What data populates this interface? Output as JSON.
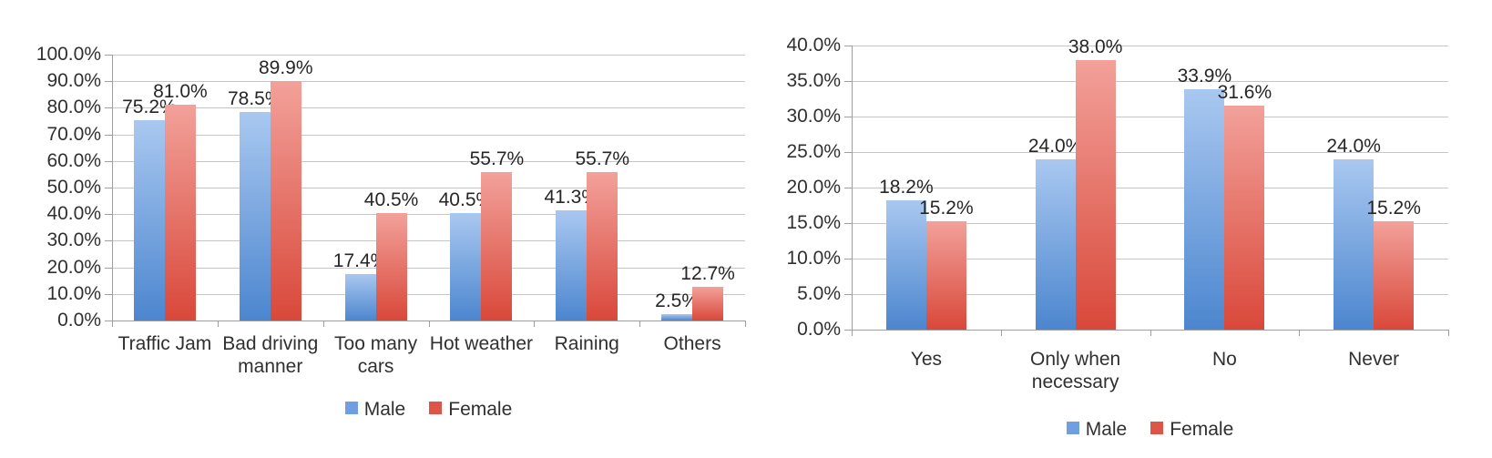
{
  "page": {
    "background": "#ffffff"
  },
  "colors": {
    "bar_male_top": "#a9c8f0",
    "bar_male_bottom": "#4c86cf",
    "bar_female_top": "#f2a19a",
    "bar_female_bottom": "#d9483a",
    "legend_male": "#6f9fe0",
    "legend_female": "#dd5448",
    "gridline": "#c6c6c6",
    "axis_line": "#9e9e9e",
    "text": "#303030"
  },
  "chart_data": [
    {
      "type": "bar",
      "title": "",
      "categories": [
        "Traffic Jam",
        "Bad driving manner",
        "Too many cars",
        "Hot weather",
        "Raining",
        "Others"
      ],
      "series": [
        {
          "name": "Male",
          "values": [
            75.2,
            78.5,
            17.4,
            40.5,
            41.3,
            2.5
          ]
        },
        {
          "name": "Female",
          "values": [
            81.0,
            89.9,
            40.5,
            55.7,
            55.7,
            12.7
          ]
        }
      ],
      "xlabel": "",
      "ylabel": "",
      "ylim": [
        0,
        100
      ],
      "ytick_step": 10,
      "ytick_labels": [
        "0.0%",
        "10.0%",
        "20.0%",
        "30.0%",
        "40.0%",
        "50.0%",
        "60.0%",
        "70.0%",
        "80.0%",
        "90.0%",
        "100.0%"
      ],
      "data_labels": true,
      "data_label_format": "one_decimal_percent",
      "grid": true,
      "legend_position": "bottom",
      "legend_entries": [
        "Male",
        "Female"
      ]
    },
    {
      "type": "bar",
      "title": "",
      "categories": [
        "Yes",
        "Only when necessary",
        "No",
        "Never"
      ],
      "series": [
        {
          "name": "Male",
          "values": [
            18.2,
            24.0,
            33.9,
            24.0
          ]
        },
        {
          "name": "Female",
          "values": [
            15.2,
            38.0,
            31.6,
            15.2
          ]
        }
      ],
      "xlabel": "",
      "ylabel": "",
      "ylim": [
        0,
        40
      ],
      "ytick_step": 5,
      "ytick_labels": [
        "0.0%",
        "5.0%",
        "10.0%",
        "15.0%",
        "20.0%",
        "25.0%",
        "30.0%",
        "35.0%",
        "40.0%"
      ],
      "data_labels": true,
      "data_label_format": "one_decimal_percent",
      "grid": true,
      "legend_position": "bottom",
      "legend_entries": [
        "Male",
        "Female"
      ]
    }
  ]
}
